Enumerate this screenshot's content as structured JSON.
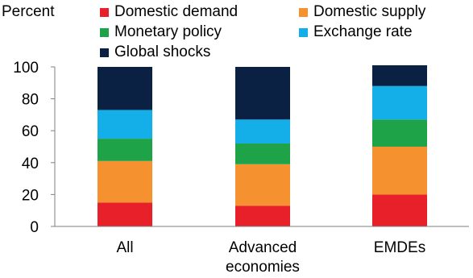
{
  "chart_data": {
    "type": "bar",
    "stacked": true,
    "unit_label": "Percent",
    "categories": [
      [
        "All"
      ],
      [
        "Advanced",
        "economies"
      ],
      [
        "EMDEs"
      ]
    ],
    "series": [
      {
        "name": "Domestic demand",
        "color": "#e8202a",
        "values": [
          15,
          13,
          20
        ]
      },
      {
        "name": "Domestic supply",
        "color": "#f5922f",
        "values": [
          26,
          26,
          30
        ]
      },
      {
        "name": "Monetary policy",
        "color": "#1ea348",
        "values": [
          14,
          13,
          17
        ]
      },
      {
        "name": "Exchange rate",
        "color": "#14aee8",
        "values": [
          18,
          15,
          21
        ]
      },
      {
        "name": "Global shocks",
        "color": "#0a2143",
        "values": [
          27,
          33,
          13
        ]
      }
    ],
    "ylim": [
      0,
      100
    ],
    "yticks": [
      0,
      20,
      40,
      60,
      80,
      100
    ],
    "grid": false,
    "legend_position": "top"
  }
}
